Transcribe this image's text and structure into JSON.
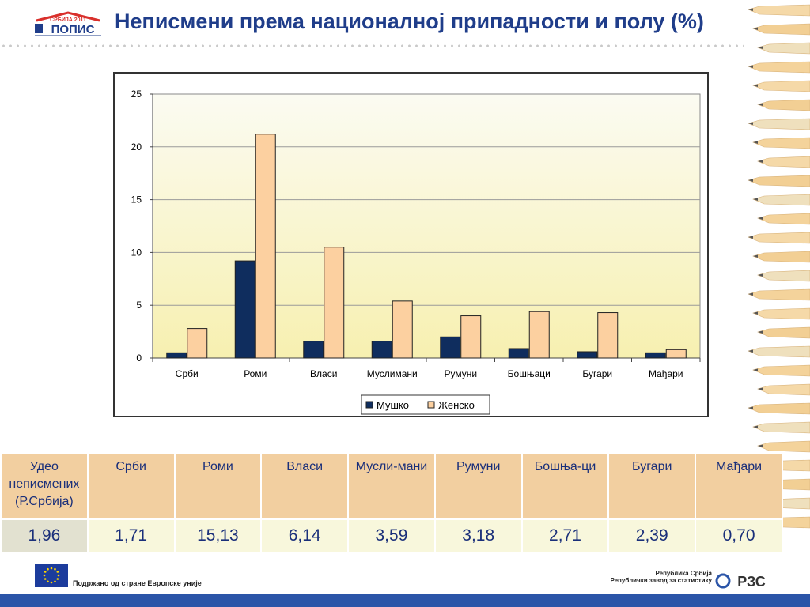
{
  "header": {
    "logo_text_top": "СРБИЈА 2011",
    "logo_text_main": "ПОПИС",
    "title": "Неписмени према националној припадности и полу (%)"
  },
  "chart_data": {
    "type": "bar",
    "categories": [
      "Срби",
      "Роми",
      "Власи",
      "Муслимани",
      "Румуни",
      "Бошњаци",
      "Бугари",
      "Мађари"
    ],
    "series": [
      {
        "name": "Мушко",
        "values": [
          0.5,
          9.2,
          1.6,
          1.6,
          2.0,
          0.9,
          0.6,
          0.5
        ]
      },
      {
        "name": "Женско",
        "values": [
          2.8,
          21.2,
          10.5,
          5.4,
          4.0,
          4.4,
          4.3,
          0.8
        ]
      }
    ],
    "ylim": [
      0,
      25
    ],
    "yticks": [
      "0",
      "5",
      "10",
      "15",
      "20",
      "25"
    ],
    "grid": true,
    "legend": "bottom",
    "colors": {
      "series0": "#0f2d5e",
      "series1": "#fcd0a0",
      "plot_bg_top": "#fbfbf2",
      "plot_bg_bottom": "#f7f0b0"
    }
  },
  "table": {
    "headers": [
      "Удео неписмених (Р.Србија)",
      "Срби",
      "Роми",
      "Власи",
      "Мусли-мани",
      "Румуни",
      "Бошња-ци",
      "Бугари",
      "Мађари"
    ],
    "values": [
      "1,96",
      "1,71",
      "15,13",
      "6,14",
      "3,59",
      "3,18",
      "2,71",
      "2,39",
      "0,70"
    ]
  },
  "footer": {
    "eu_text": "Подржано од стране Европске уније",
    "rzs_line1": "Република Србија",
    "rzs_line2": "Републички завод за статистику",
    "rzs_logo": "РЗС"
  }
}
